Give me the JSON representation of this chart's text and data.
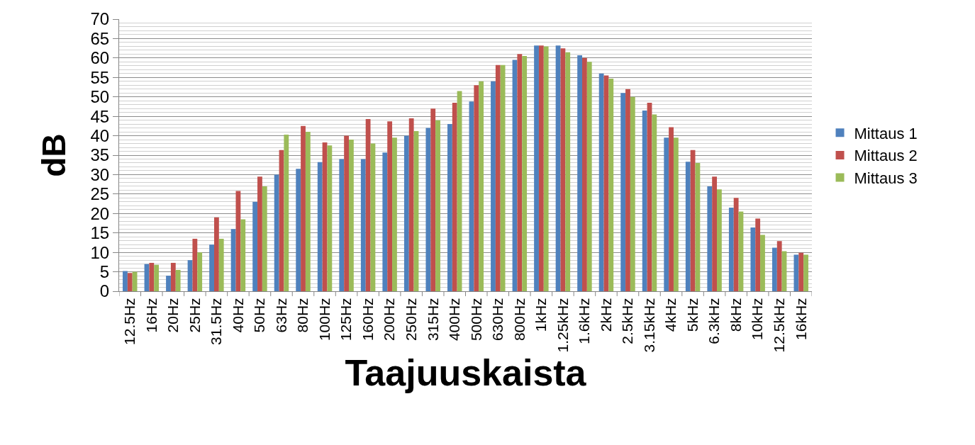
{
  "chart_data": {
    "type": "bar",
    "xlabel": "Taajuuskaista",
    "ylabel": "dB",
    "categories": [
      "12.5Hz",
      "16Hz",
      "20Hz",
      "25Hz",
      "31.5Hz",
      "40Hz",
      "50Hz",
      "63Hz",
      "80Hz",
      "100Hz",
      "125Hz",
      "160Hz",
      "200Hz",
      "250Hz",
      "315Hz",
      "400Hz",
      "500Hz",
      "630Hz",
      "800Hz",
      "1kHz",
      "1.25kHz",
      "1.6kHz",
      "2kHz",
      "2.5kHz",
      "3.15kHz",
      "4kHz",
      "5kHz",
      "6.3kHz",
      "8kHz",
      "10kHz",
      "12.5kHz",
      "16kHz"
    ],
    "series": [
      {
        "name": "Mittaus 1",
        "color": "#4f81bd",
        "values": [
          5.2,
          7.0,
          4.0,
          8.0,
          12.0,
          16.0,
          23.0,
          30.0,
          31.5,
          33.2,
          34.0,
          34.0,
          35.7,
          40.0,
          42.0,
          43.0,
          48.8,
          54.0,
          59.5,
          63.2,
          63.2,
          60.7,
          56.0,
          51.0,
          46.5,
          39.5,
          33.3,
          27.0,
          21.5,
          16.4,
          11.2,
          9.4
        ]
      },
      {
        "name": "Mittaus 2",
        "color": "#c0504d",
        "values": [
          4.7,
          7.3,
          7.3,
          13.5,
          19.0,
          25.8,
          29.5,
          36.3,
          42.5,
          38.3,
          40.0,
          44.3,
          43.7,
          44.5,
          47.0,
          48.5,
          53.0,
          58.2,
          61.0,
          63.2,
          62.5,
          60.0,
          55.5,
          52.0,
          48.5,
          42.2,
          36.3,
          29.5,
          24.0,
          18.7,
          12.9,
          9.9
        ]
      },
      {
        "name": "Mittaus 3",
        "color": "#9bbb59",
        "values": [
          5.0,
          6.8,
          5.5,
          10.0,
          13.5,
          18.5,
          27.0,
          40.3,
          41.0,
          37.5,
          39.0,
          38.0,
          39.5,
          41.2,
          44.0,
          51.5,
          54.0,
          58.2,
          60.5,
          63.0,
          61.5,
          59.0,
          54.7,
          50.0,
          45.5,
          39.5,
          33.0,
          26.2,
          20.5,
          14.5,
          10.3,
          9.4
        ]
      }
    ],
    "ylim": [
      0,
      70
    ],
    "yticks": [
      0,
      5,
      10,
      15,
      20,
      25,
      30,
      35,
      40,
      45,
      50,
      55,
      60,
      65,
      70
    ],
    "grid": "y",
    "legend": "right"
  }
}
